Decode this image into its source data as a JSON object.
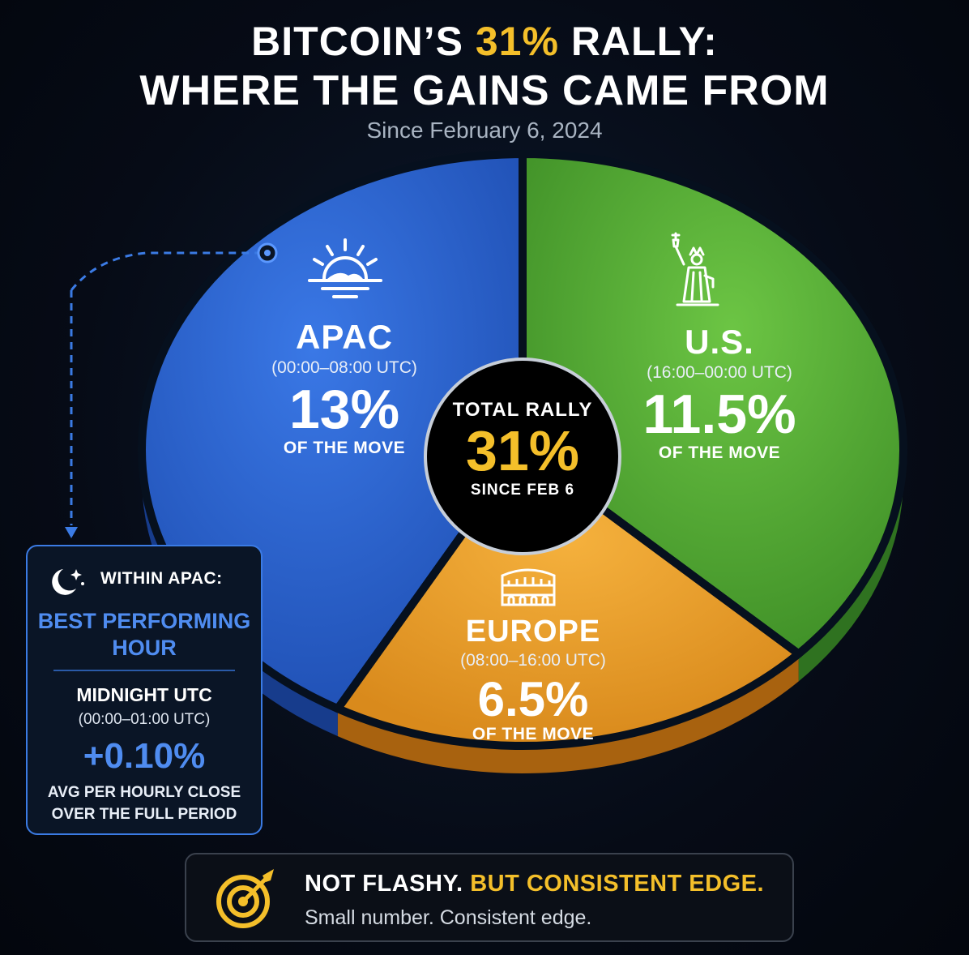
{
  "title": {
    "line1_pre": "BITCOIN’S ",
    "line1_highlight": "31%",
    "line1_post": " RALLY:",
    "line2": "WHERE THE GAINS CAME FROM",
    "subtitle": "Since February 6, 2024"
  },
  "center": {
    "label": "TOTAL RALLY",
    "value": "31%",
    "since": "SINCE FEB 6"
  },
  "apac_detail": {
    "heading": "WITHIN APAC:",
    "best_line1": "BEST PERFORMING",
    "best_line2": "HOUR",
    "hour": "MIDNIGHT UTC",
    "hour_range": "(00:00–01:00 UTC)",
    "value": "+0.10%",
    "note_line1": "AVG PER HOURLY CLOSE",
    "note_line2": "OVER THE FULL PERIOD"
  },
  "footer": {
    "part1": "NOT FLASHY.",
    "part2": "BUT CONSISTENT EDGE.",
    "line2": "Small number. Consistent edge."
  },
  "colors": {
    "apac": "#2d66d6",
    "us": "#5fb63b",
    "europe": "#f0a431",
    "accent": "#f4bf2a",
    "background": "#060b16"
  },
  "icons": {
    "apac": "sunrise-icon",
    "us": "statue-of-liberty-icon",
    "europe": "colosseum-icon",
    "apac_box": "moon-stars-icon",
    "footer": "target-icon"
  },
  "chart_data": {
    "type": "pie",
    "title": "BITCOIN’S 31% RALLY: WHERE THE GAINS CAME FROM",
    "subtitle": "Since February 6, 2024",
    "unit": "%",
    "total": 31,
    "slices": [
      {
        "label": "APAC",
        "hours": "(00:00–08:00 UTC)",
        "value": 13,
        "value_label": "13%",
        "caption": "OF THE MOVE",
        "color": "#2d66d6"
      },
      {
        "label": "U.S.",
        "hours": "(16:00–00:00 UTC)",
        "value": 11.5,
        "value_label": "11.5%",
        "caption": "OF THE MOVE",
        "color": "#5fb63b"
      },
      {
        "label": "EUROPE",
        "hours": "(08:00–16:00 UTC)",
        "value": 6.5,
        "value_label": "6.5%",
        "caption": "OF THE MOVE",
        "color": "#f0a431"
      }
    ]
  }
}
